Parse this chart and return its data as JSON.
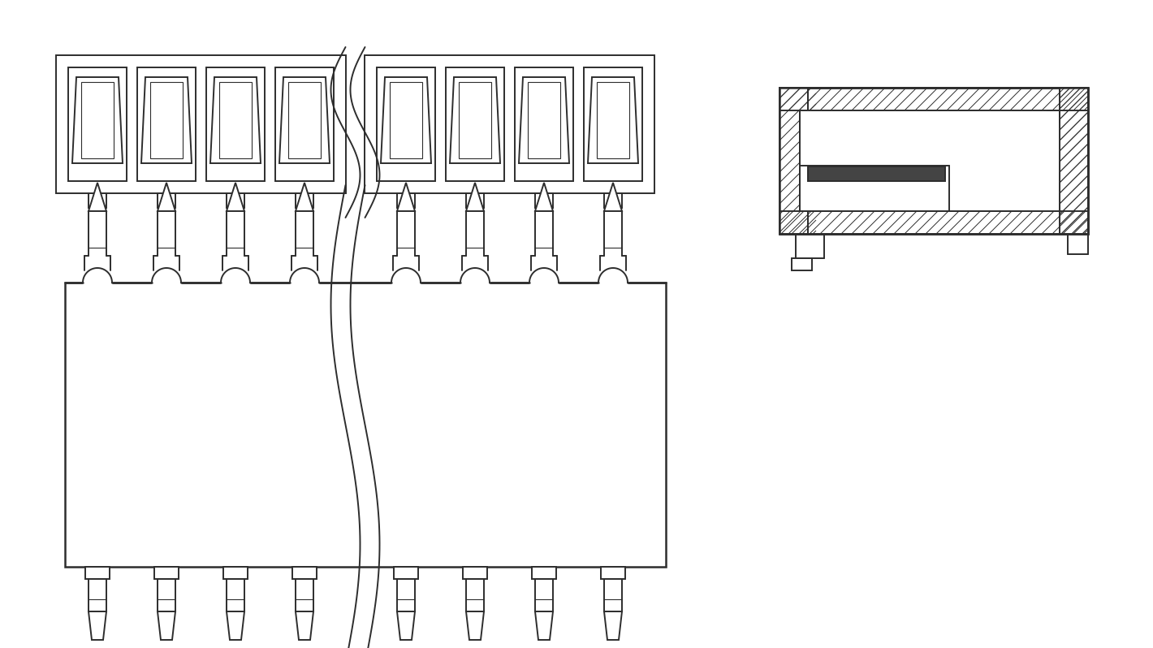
{
  "line_color": "#2d2d2d",
  "bg_color": "#ffffff",
  "lw": 1.4,
  "hlw": 1.8,
  "thin_lw": 0.8,
  "figsize": [
    14.2,
    7.98
  ],
  "dpi": 100,
  "n_contacts": 8
}
